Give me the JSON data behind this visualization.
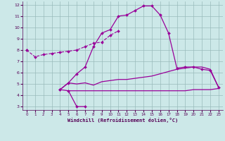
{
  "x": [
    0,
    1,
    2,
    3,
    4,
    5,
    6,
    7,
    8,
    9,
    10,
    11,
    12,
    13,
    14,
    15,
    16,
    17,
    18,
    19,
    20,
    21,
    22,
    23
  ],
  "line_dashed": [
    8.0,
    7.4,
    7.6,
    7.7,
    7.8,
    7.9,
    8.0,
    8.3,
    8.6,
    8.7,
    9.3,
    9.7,
    null,
    null,
    null,
    null,
    null,
    null,
    null,
    null,
    null,
    null,
    null,
    null
  ],
  "line_main": [
    8.0,
    null,
    null,
    null,
    4.5,
    5.1,
    5.9,
    6.5,
    8.3,
    9.5,
    9.8,
    11.0,
    11.1,
    11.5,
    11.9,
    11.9,
    11.1,
    9.5,
    6.4,
    6.5,
    6.5,
    6.3,
    6.2,
    4.7
  ],
  "line_mid": [
    null,
    null,
    null,
    null,
    4.5,
    5.1,
    5.0,
    5.1,
    4.9,
    5.2,
    5.3,
    5.4,
    5.4,
    5.5,
    5.6,
    5.7,
    5.9,
    6.1,
    6.3,
    6.4,
    6.5,
    6.5,
    6.3,
    4.7
  ],
  "line_flat": [
    null,
    null,
    null,
    null,
    null,
    4.4,
    4.4,
    4.4,
    4.4,
    4.4,
    4.4,
    4.4,
    4.4,
    4.4,
    4.4,
    4.4,
    4.4,
    4.4,
    4.4,
    4.4,
    4.5,
    4.5,
    4.5,
    4.6
  ],
  "line_bottom": [
    null,
    null,
    null,
    null,
    4.5,
    4.4,
    3.0,
    3.0,
    null,
    null,
    null,
    null,
    null,
    null,
    null,
    null,
    null,
    null,
    null,
    null,
    null,
    null,
    null,
    null
  ],
  "bg_color": "#cce8e8",
  "line_color": "#990099",
  "grid_color": "#99bbbb",
  "xlabel": "Windchill (Refroidissement éolien,°C)",
  "xlim": [
    -0.5,
    23.5
  ],
  "ylim": [
    2.7,
    12.3
  ],
  "yticks": [
    3,
    4,
    5,
    6,
    7,
    8,
    9,
    10,
    11,
    12
  ],
  "xticks": [
    0,
    1,
    2,
    3,
    4,
    5,
    6,
    7,
    8,
    9,
    10,
    11,
    12,
    13,
    14,
    15,
    16,
    17,
    18,
    19,
    20,
    21,
    22,
    23
  ]
}
